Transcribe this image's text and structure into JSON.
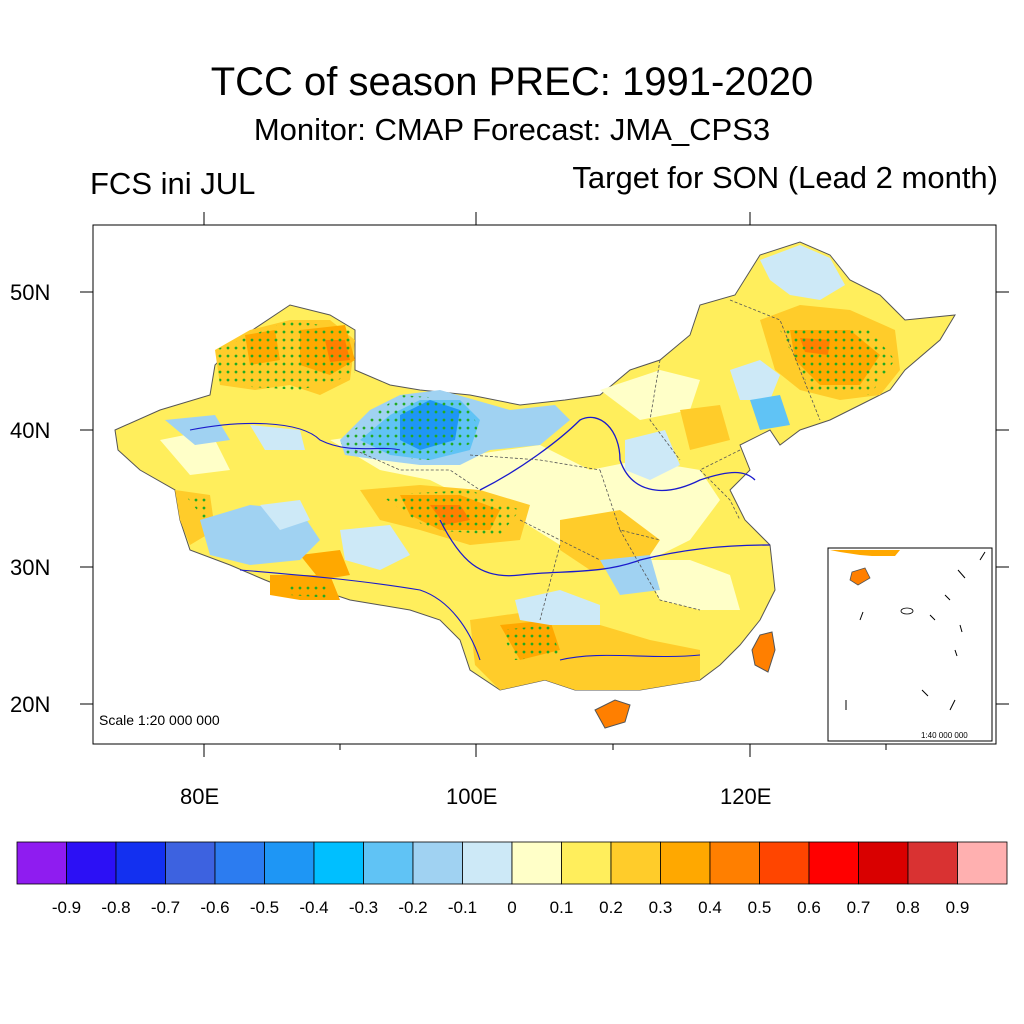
{
  "title": "TCC of season PREC: 1991-2020",
  "subtitle": "Monitor: CMAP   Forecast: JMA_CPS3",
  "left_label": "FCS ini JUL",
  "right_label": "Target for SON (Lead 2 month)",
  "lat_labels": [
    "50N",
    "40N",
    "30N",
    "20N"
  ],
  "lon_labels": [
    "80E",
    "100E",
    "120E"
  ],
  "scale_label": "Scale 1:20 000 000",
  "inset_scale_label": "1:40 000 000",
  "colorbar": {
    "colors": [
      "#8f1cf0",
      "#2c10f5",
      "#1330f0",
      "#3d62e0",
      "#2c7cf0",
      "#1e96f5",
      "#00bfff",
      "#60c3f5",
      "#a0d2f2",
      "#cde9f7",
      "#ffffc8",
      "#ffee5c",
      "#ffcc2a",
      "#ffa800",
      "#ff7f00",
      "#ff4500",
      "#ff0000",
      "#d90000",
      "#d93232",
      "#ffb0b0"
    ],
    "labels": [
      "-0.9",
      "-0.8",
      "-0.7",
      "-0.6",
      "-0.5",
      "-0.4",
      "-0.3",
      "-0.2",
      "-0.1",
      "0",
      "0.1",
      "0.2",
      "0.3",
      "0.4",
      "0.5",
      "0.6",
      "0.7",
      "0.8",
      "0.9"
    ]
  },
  "colors": {
    "significance_dots": "#22aa22",
    "river": "#1a1acc",
    "border": "#555555"
  }
}
